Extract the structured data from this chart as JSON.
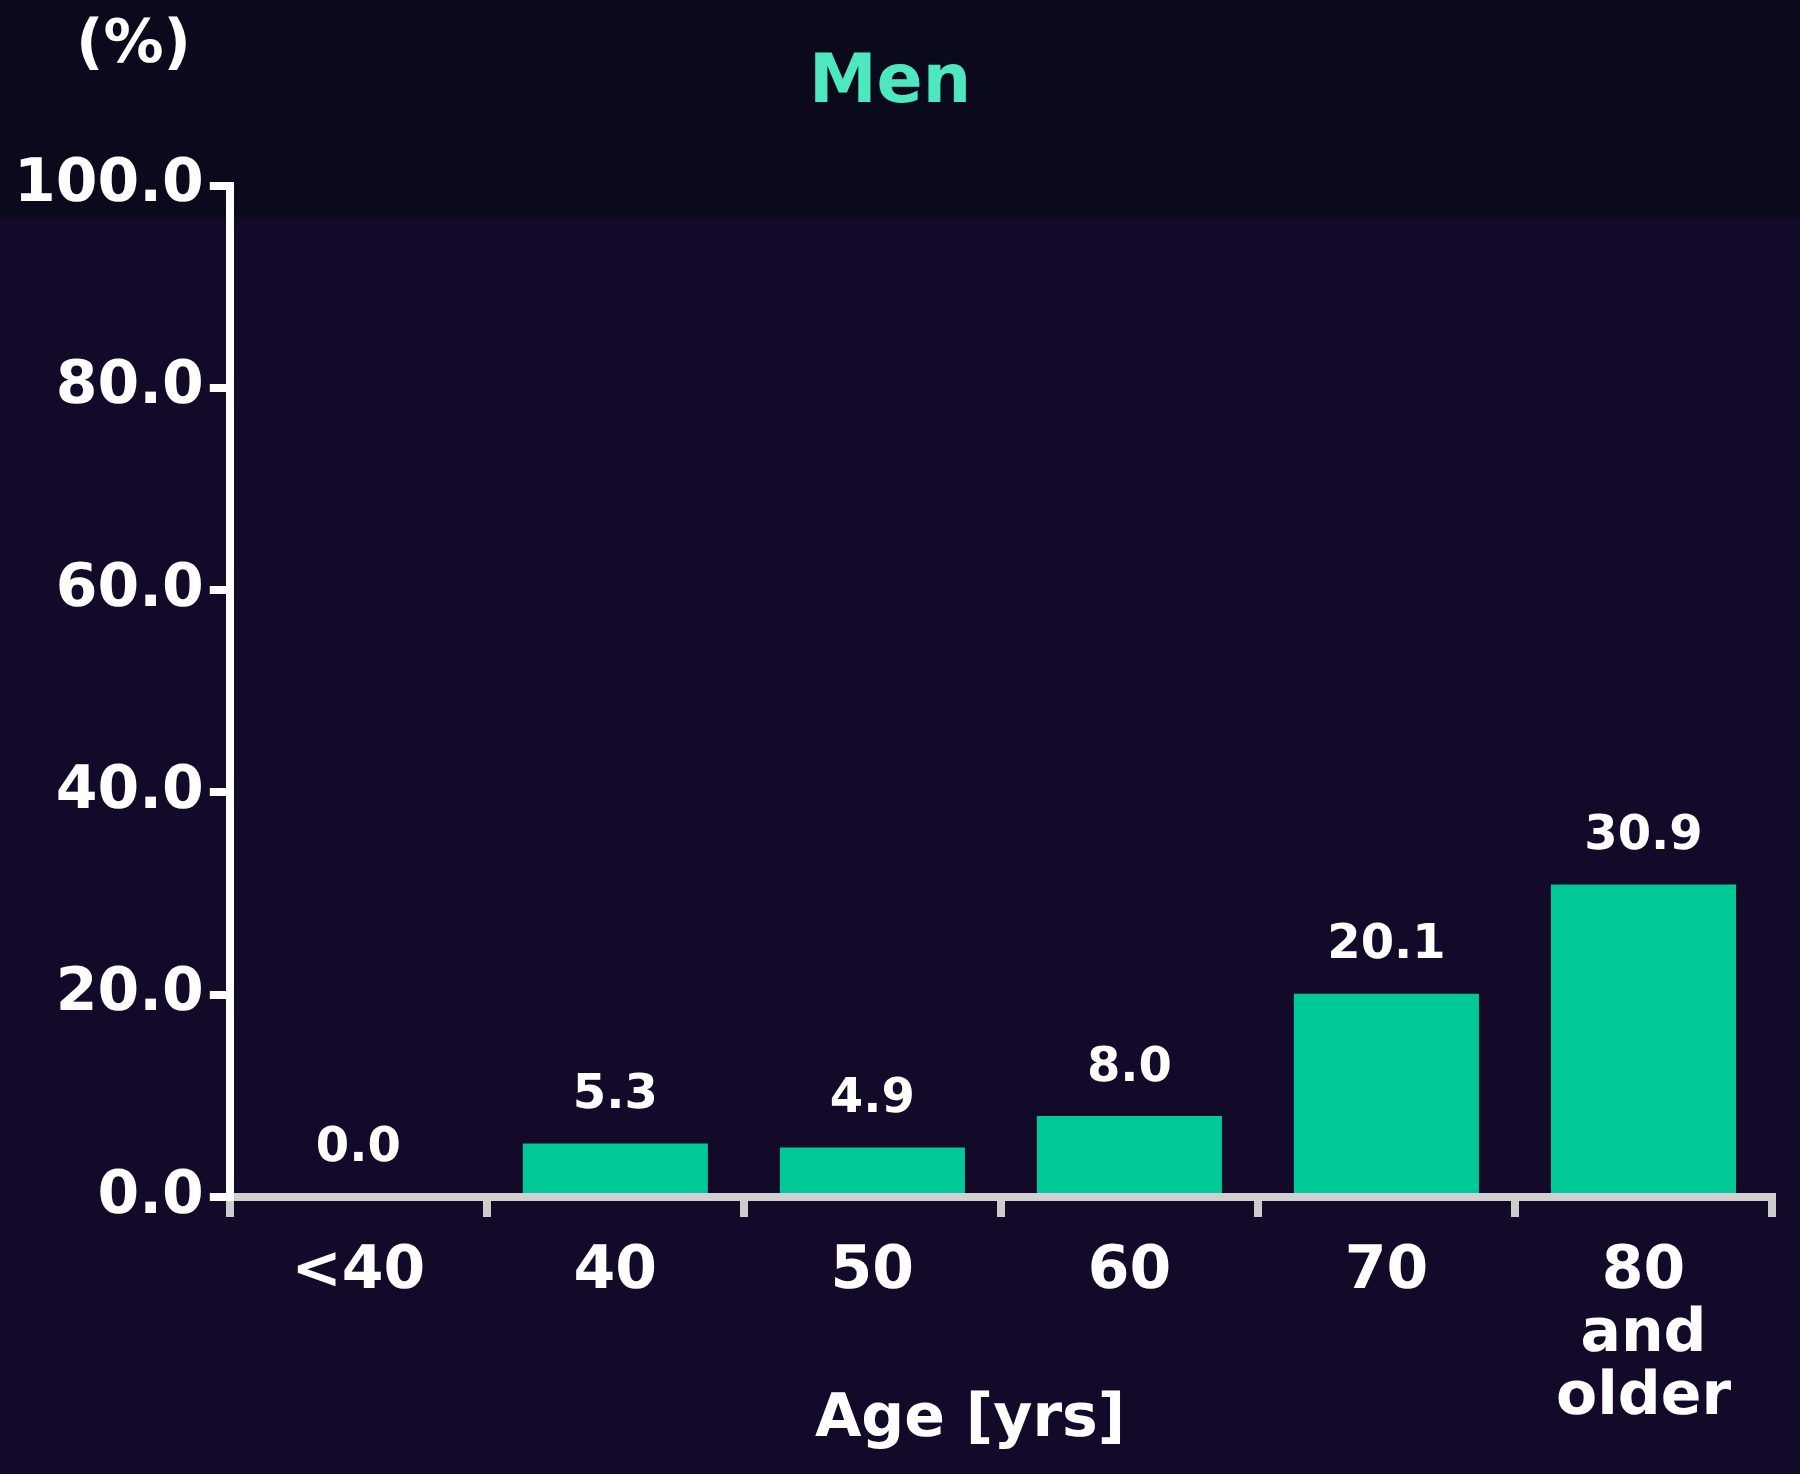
{
  "chart_data": {
    "type": "bar",
    "title": "Men",
    "xlabel": "Age [yrs]",
    "ylabel": "(%)",
    "categories": [
      "<40",
      "40",
      "50",
      "60",
      "70",
      "80 and older"
    ],
    "values": [
      0.0,
      5.3,
      4.9,
      8.0,
      20.1,
      30.9
    ],
    "value_labels": [
      "0.0",
      "5.3",
      "4.9",
      "8.0",
      "20.1",
      "30.9"
    ],
    "color": "#00c896",
    "ylim": [
      0,
      100
    ],
    "yticks": [
      {
        "value": 0,
        "label": "0.0"
      },
      {
        "value": 20,
        "label": "20.0"
      },
      {
        "value": 40,
        "label": "40.0"
      },
      {
        "value": 60,
        "label": "60.0"
      },
      {
        "value": 80,
        "label": "80.0"
      },
      {
        "value": 100,
        "label": "100.0"
      }
    ],
    "grid": false,
    "legend": false
  }
}
